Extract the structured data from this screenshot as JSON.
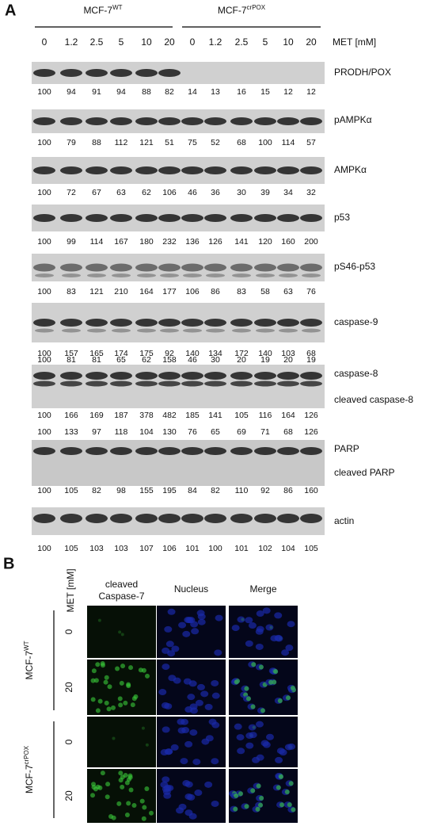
{
  "panel_a": {
    "label": "A",
    "groups": [
      {
        "name": "MCF-7",
        "sup": "WT"
      },
      {
        "name": "MCF-7",
        "sup": "crPOX"
      }
    ],
    "concentrations": [
      0,
      1.2,
      2.5,
      5,
      10,
      20,
      0,
      1.2,
      2.5,
      5,
      10,
      20
    ],
    "unit": "MET  [mM]",
    "blots": [
      {
        "labels": [
          "PRODH/POX"
        ],
        "below": [
          100,
          94,
          91,
          94,
          88,
          82,
          14,
          13,
          16,
          15,
          12,
          12
        ]
      },
      {
        "labels": [
          "pAMPKα"
        ],
        "below": [
          100,
          79,
          88,
          112,
          121,
          51,
          75,
          52,
          68,
          100,
          114,
          57
        ]
      },
      {
        "labels": [
          "AMPKα"
        ],
        "below": [
          100,
          72,
          67,
          63,
          62,
          106,
          46,
          36,
          30,
          39,
          34,
          32
        ]
      },
      {
        "labels": [
          "p53"
        ],
        "below": [
          100,
          99,
          114,
          167,
          180,
          232,
          136,
          126,
          141,
          120,
          160,
          200
        ]
      },
      {
        "labels": [
          "pS46-p53"
        ],
        "below": [
          100,
          83,
          121,
          210,
          164,
          177,
          106,
          86,
          83,
          58,
          63,
          76
        ]
      },
      {
        "labels": [
          "caspase-9"
        ],
        "below": [
          100,
          157,
          165,
          174,
          175,
          92,
          140,
          134,
          172,
          140,
          103,
          68
        ]
      },
      {
        "labels": [
          "caspase-8",
          "cleaved caspase-8"
        ],
        "above": [
          100,
          81,
          81,
          65,
          62,
          158,
          46,
          30,
          20,
          19,
          20,
          19
        ],
        "below": [
          100,
          166,
          169,
          187,
          378,
          482,
          185,
          141,
          105,
          116,
          164,
          126
        ]
      },
      {
        "labels": [
          "PARP",
          "cleaved PARP"
        ],
        "above": [
          100,
          133,
          97,
          118,
          104,
          130,
          76,
          65,
          69,
          71,
          68,
          126
        ],
        "below": [
          100,
          105,
          82,
          98,
          155,
          195,
          84,
          82,
          110,
          92,
          86,
          160
        ]
      },
      {
        "labels": [
          "actin"
        ],
        "below": [
          100,
          105,
          103,
          103,
          107,
          106,
          101,
          100,
          101,
          102,
          104,
          105
        ]
      }
    ]
  },
  "panel_b": {
    "label": "B",
    "axis": "MET [mM]",
    "columns": [
      [
        "cleaved",
        "Caspase-7"
      ],
      [
        "Nucleus"
      ],
      [
        "Merge"
      ]
    ],
    "groups": [
      {
        "name": "MCF-7",
        "sup": "WT",
        "doses": [
          0,
          20
        ]
      },
      {
        "name": "MCF-7",
        "sup": "crPOX",
        "doses": [
          0,
          20
        ]
      }
    ]
  }
}
